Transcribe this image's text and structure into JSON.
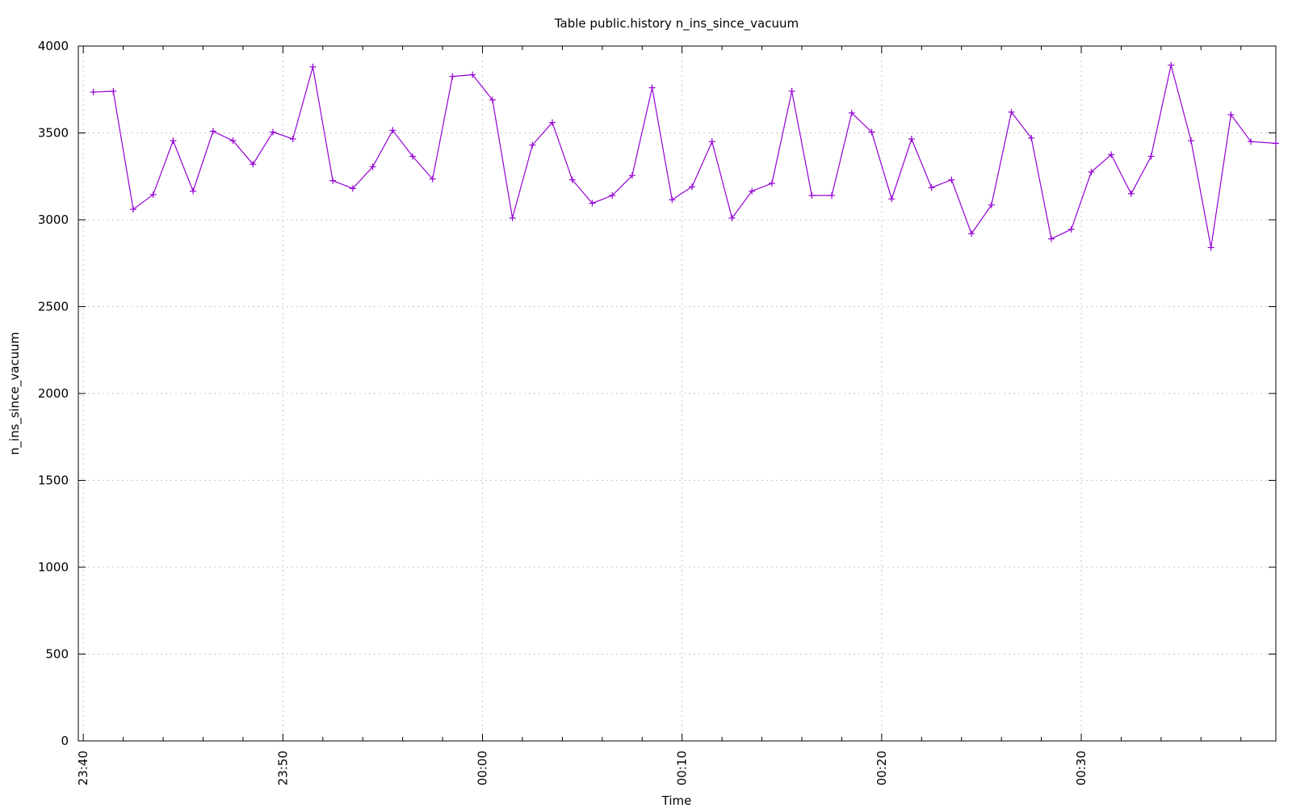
{
  "chart_data": {
    "type": "line",
    "title": "Table public.history n_ins_since_vacuum",
    "xlabel": "Time",
    "ylabel": "n_ins_since_vacuum",
    "ylim": [
      0,
      4000
    ],
    "xlim": [
      "23:40",
      "00:39:45"
    ],
    "x_ticks": [
      "23:40",
      "23:50",
      "00:00",
      "00:10",
      "00:20",
      "00:30"
    ],
    "y_ticks": [
      "0",
      "500",
      "1000",
      "1500",
      "2000",
      "2500",
      "3000",
      "3500",
      "4000"
    ],
    "grid": true,
    "line_color": "#9400d3",
    "marker": "plus",
    "series": [
      {
        "x": [
          "23:40:30",
          "23:41:30",
          "23:42:30",
          "23:43:30",
          "23:44:30",
          "23:45:30",
          "23:46:30",
          "23:47:30",
          "23:48:30",
          "23:49:30",
          "23:50:30",
          "23:51:30",
          "23:52:30",
          "23:53:30",
          "23:54:30",
          "23:55:30",
          "23:56:30",
          "23:57:30",
          "23:58:30",
          "23:59:30",
          "00:00:30",
          "00:01:30",
          "00:02:30",
          "00:03:30",
          "00:04:30",
          "00:05:30",
          "00:06:30",
          "00:07:30",
          "00:08:30",
          "00:09:30",
          "00:10:30",
          "00:11:30",
          "00:12:30",
          "00:13:30",
          "00:14:30",
          "00:15:30",
          "00:16:30",
          "00:17:30",
          "00:18:30",
          "00:19:30",
          "00:20:30",
          "00:21:30",
          "00:22:30",
          "00:23:30",
          "00:24:30",
          "00:25:30",
          "00:26:30",
          "00:27:30",
          "00:28:30",
          "00:29:30",
          "00:30:30",
          "00:31:30",
          "00:32:30",
          "00:33:30",
          "00:34:30",
          "00:35:30",
          "00:36:30",
          "00:37:30",
          "00:38:30",
          "00:39:45"
        ],
        "values": [
          3735,
          3740,
          3060,
          3145,
          3455,
          3165,
          3510,
          3455,
          3320,
          3505,
          3465,
          3880,
          3225,
          3180,
          3305,
          3515,
          3365,
          3235,
          3825,
          3835,
          3690,
          3010,
          3430,
          3560,
          3230,
          3095,
          3140,
          3255,
          3760,
          3115,
          3190,
          3450,
          3010,
          3165,
          3210,
          3740,
          3140,
          3140,
          3615,
          3505,
          3120,
          3465,
          3185,
          3230,
          2920,
          3085,
          3620,
          3470,
          2890,
          2945,
          3275,
          3375,
          3150,
          3365,
          3890,
          3455,
          2840,
          3605,
          3450,
          3440
        ]
      }
    ]
  }
}
